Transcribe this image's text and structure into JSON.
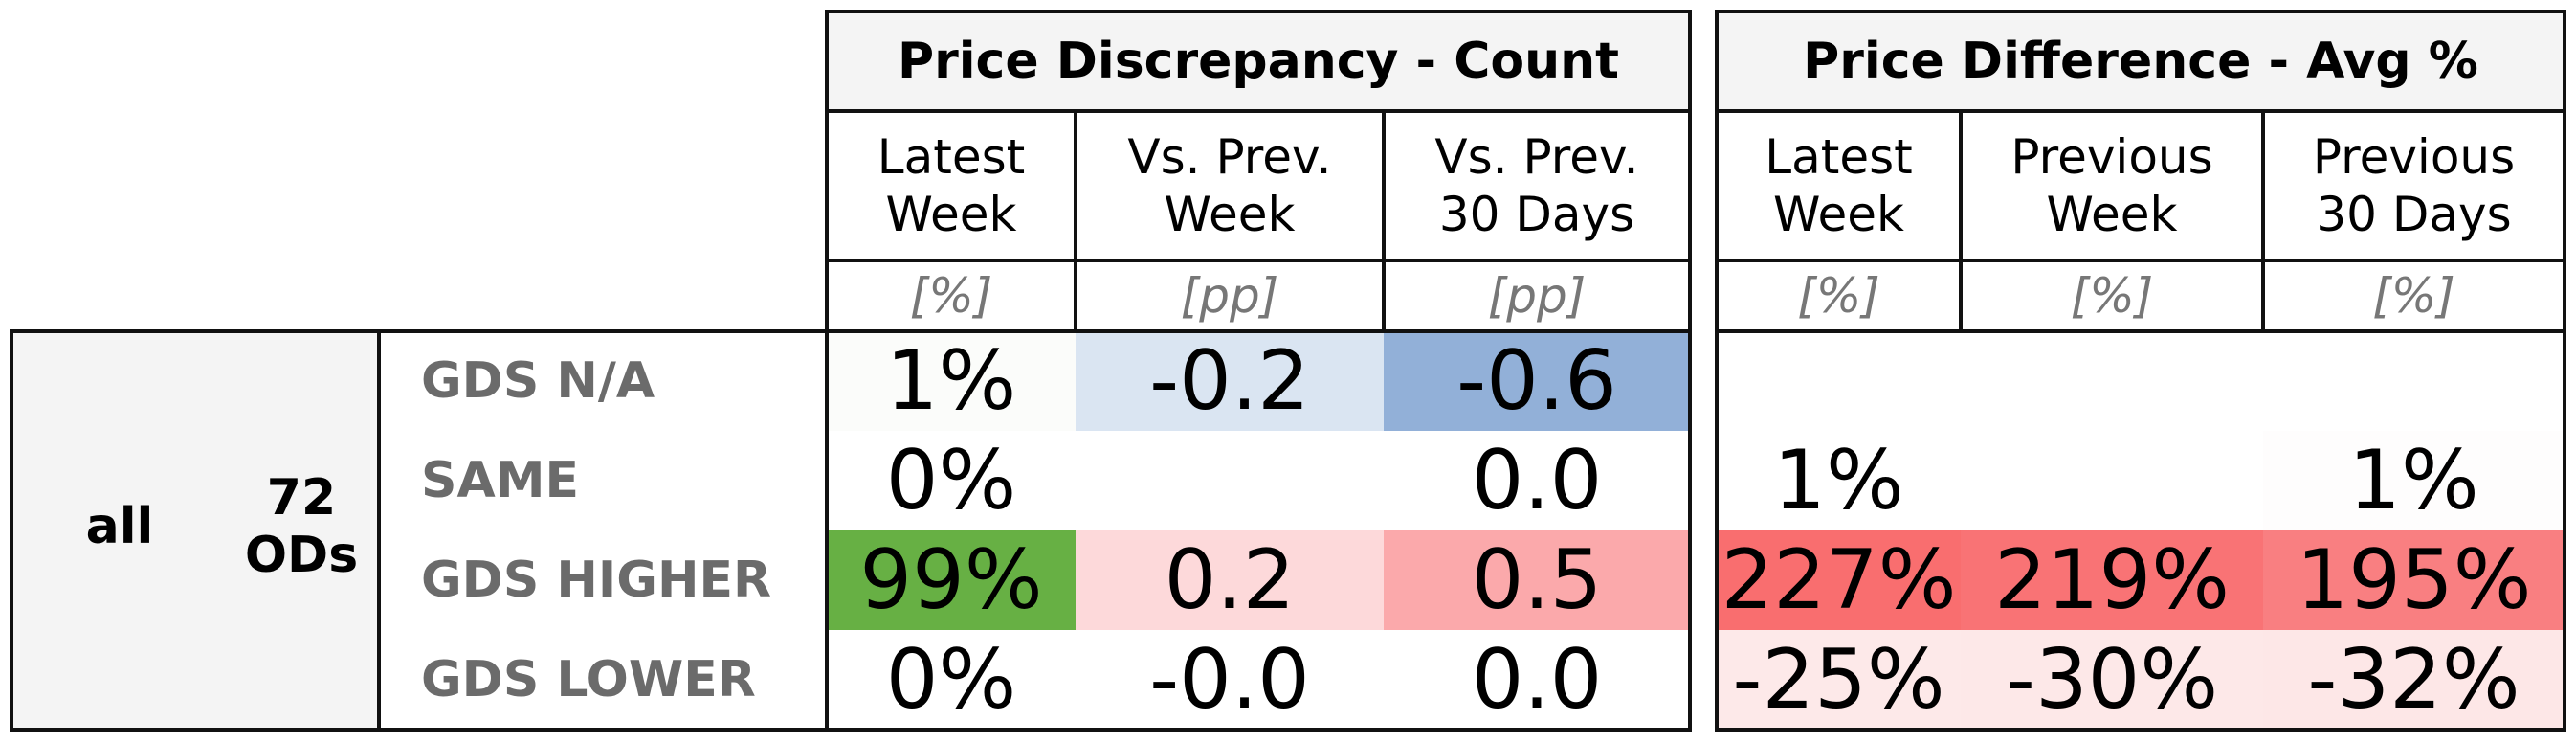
{
  "segment": {
    "name": "all",
    "count_label": "72\nODs"
  },
  "row_labels": [
    "GDS N/A",
    "SAME",
    "GDS HIGHER",
    "GDS LOWER"
  ],
  "groups": [
    {
      "title": "Price Discrepancy - Count",
      "columns": [
        {
          "header": "Latest\nWeek",
          "unit": "[%]"
        },
        {
          "header": "Vs. Prev.\nWeek",
          "unit": "[pp]"
        },
        {
          "header": "Vs. Prev.\n30 Days",
          "unit": "[pp]"
        }
      ],
      "cells": [
        [
          {
            "text": "1%",
            "bg": "#fbfcfa"
          },
          {
            "text": "-0.2",
            "bg": "#dae5f2"
          },
          {
            "text": "-0.6",
            "bg": "#92b0d8"
          }
        ],
        [
          {
            "text": "0%",
            "bg": "#ffffff"
          },
          {
            "text": "",
            "bg": "#ffffff"
          },
          {
            "text": "0.0",
            "bg": "#ffffff"
          }
        ],
        [
          {
            "text": "99%",
            "bg": "#67b044"
          },
          {
            "text": "0.2",
            "bg": "#fdd9da"
          },
          {
            "text": "0.5",
            "bg": "#fba9ab"
          }
        ],
        [
          {
            "text": "0%",
            "bg": "#ffffff"
          },
          {
            "text": "-0.0",
            "bg": "#ffffff"
          },
          {
            "text": "0.0",
            "bg": "#ffffff"
          }
        ]
      ]
    },
    {
      "title": "Price Difference - Avg %",
      "columns": [
        {
          "header": "Latest\nWeek",
          "unit": "[%]"
        },
        {
          "header": "Previous\nWeek",
          "unit": "[%]"
        },
        {
          "header": "Previous\n30 Days",
          "unit": "[%]"
        }
      ],
      "cells": [
        [
          {
            "text": "",
            "bg": "#ffffff"
          },
          {
            "text": "",
            "bg": "#ffffff"
          },
          {
            "text": "",
            "bg": "#ffffff"
          }
        ],
        [
          {
            "text": "1%",
            "bg": "#ffffff"
          },
          {
            "text": "",
            "bg": "#ffffff"
          },
          {
            "text": "1%",
            "bg": "#fefdfd"
          }
        ],
        [
          {
            "text": "227%",
            "bg": "#f96e6f"
          },
          {
            "text": "219%",
            "bg": "#f97375"
          },
          {
            "text": "195%",
            "bg": "#f97f81"
          }
        ],
        [
          {
            "text": "-25%",
            "bg": "#fde9e9"
          },
          {
            "text": "-30%",
            "bg": "#fde8e8"
          },
          {
            "text": "-32%",
            "bg": "#fde7e7"
          }
        ]
      ]
    }
  ],
  "chart_data": {
    "type": "table",
    "segment": "all",
    "segment_count": "72 ODs",
    "rows": [
      "GDS N/A",
      "SAME",
      "GDS HIGHER",
      "GDS LOWER"
    ],
    "tables": [
      {
        "title": "Price Discrepancy - Count",
        "columns": [
          "Latest Week",
          "Vs. Prev. Week",
          "Vs. Prev. 30 Days"
        ],
        "units": [
          "[%]",
          "[pp]",
          "[pp]"
        ],
        "values": [
          [
            "1%",
            "-0.2",
            "-0.6"
          ],
          [
            "0%",
            "",
            "0.0"
          ],
          [
            "99%",
            "0.2",
            "0.5"
          ],
          [
            "0%",
            "-0.0",
            "0.0"
          ]
        ]
      },
      {
        "title": "Price Difference - Avg %",
        "columns": [
          "Latest Week",
          "Previous Week",
          "Previous 30 Days"
        ],
        "units": [
          "[%]",
          "[%]",
          "[%]"
        ],
        "values": [
          [
            "",
            "",
            ""
          ],
          [
            "1%",
            "",
            "1%"
          ],
          [
            "227%",
            "219%",
            "195%"
          ],
          [
            "-25%",
            "-30%",
            "-32%"
          ]
        ]
      }
    ]
  }
}
